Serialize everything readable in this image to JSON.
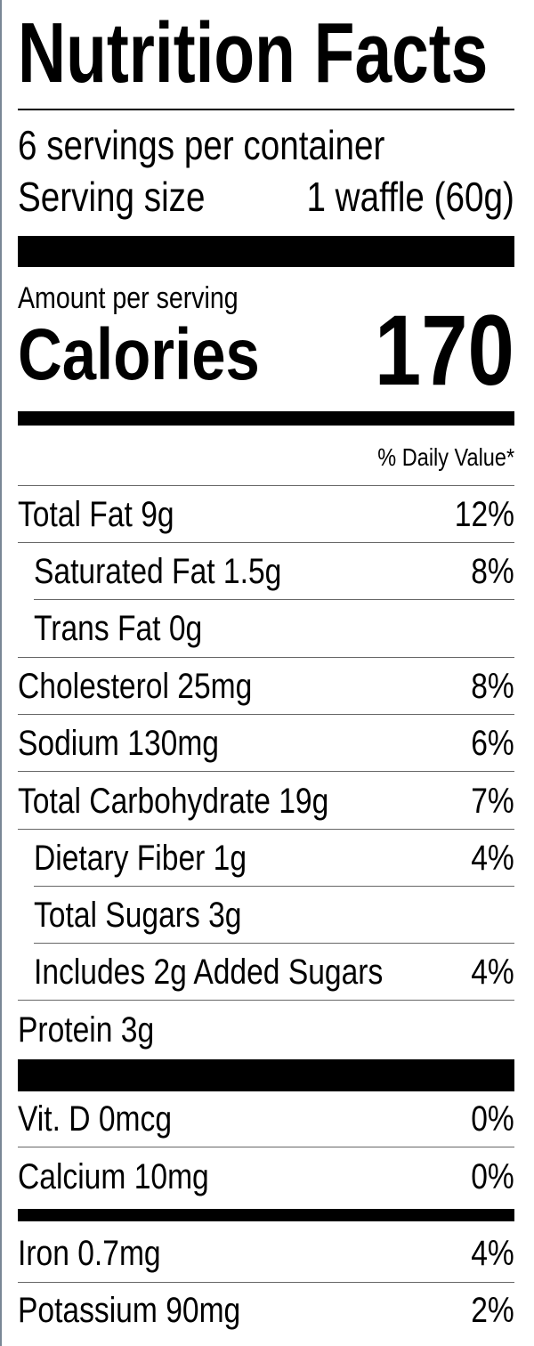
{
  "header": {
    "title": "Nutrition Facts",
    "servings": "6 servings per container",
    "serving_size_label": "Serving size",
    "serving_size": "1 waffle (60g)"
  },
  "calories": {
    "amount_label": "Amount per serving",
    "label": "Calories",
    "value": 170
  },
  "daily_value_header": "% Daily Value*",
  "nutrients": [
    {
      "name": "Total Fat 9g",
      "dv": "12%"
    },
    {
      "name": "Saturated Fat 1.5g",
      "dv": "8%"
    },
    {
      "name": "Trans Fat 0g"
    },
    {
      "name": "Cholesterol 25mg",
      "dv": "8%"
    },
    {
      "name": "Sodium 130mg",
      "dv": "6%"
    },
    {
      "name": "Total Carbohydrate 19g",
      "dv": "7%"
    },
    {
      "name": "Dietary Fiber 1g",
      "dv": "4%"
    },
    {
      "name": "Total Sugars 3g"
    },
    {
      "name": "Includes 2g Added Sugars",
      "dv": "4%"
    },
    {
      "name": "Protein 3g"
    }
  ],
  "vitamins": [
    {
      "name": "Vit. D 0mcg",
      "dv": "0%"
    },
    {
      "name": "Calcium 10mg",
      "dv": "0%"
    },
    {
      "name": "Iron 0.7mg",
      "dv": "4%"
    },
    {
      "name": "Potassium 90mg",
      "dv": "2%"
    }
  ]
}
